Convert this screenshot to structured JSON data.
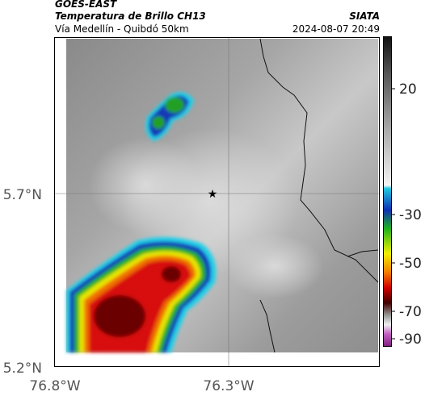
{
  "header": {
    "source": "GOES-EAST",
    "title": "Temperatura de Brillo CH13",
    "route": "Vía Medellín - Quibdó 50km",
    "agency": "SIATA",
    "timestamp": "2024-08-07 20:49"
  },
  "map": {
    "lat_labels": [
      "5.7°N",
      "5.2°N"
    ],
    "lon_labels": [
      "76.8°W",
      "76.3°W"
    ]
  },
  "colorbar": {
    "tick_labels": [
      "20",
      "-30",
      "-50",
      "-70",
      "-90"
    ]
  }
}
